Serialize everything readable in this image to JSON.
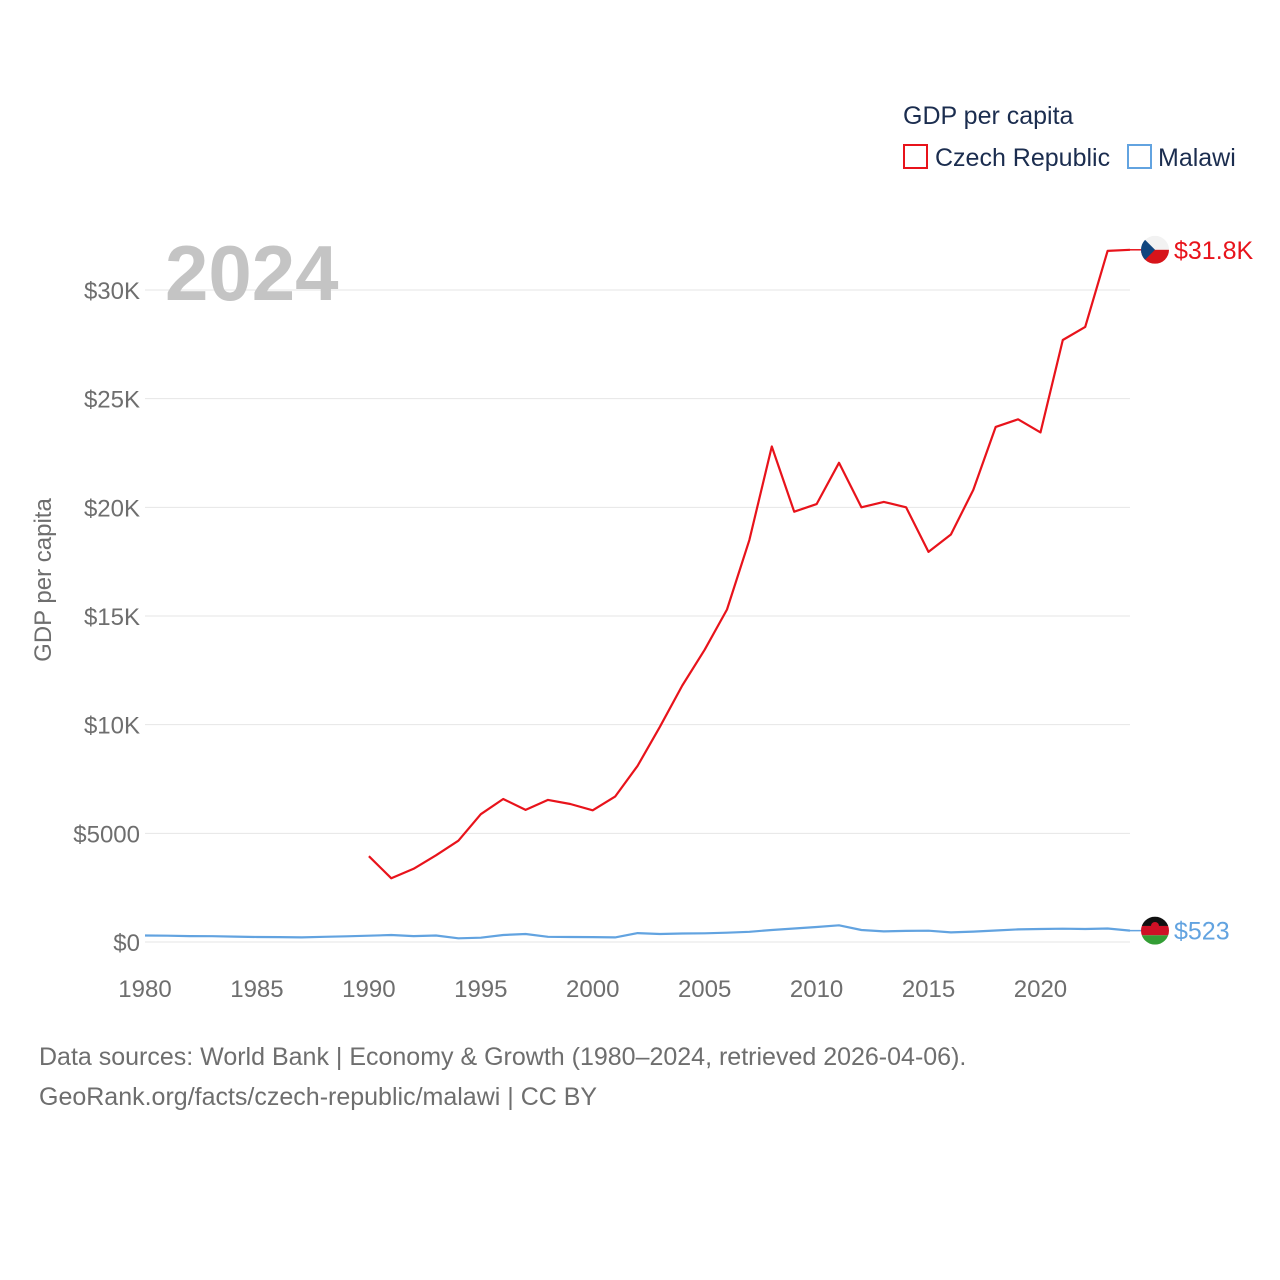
{
  "chart_data": {
    "type": "line",
    "year_label": "2024",
    "ylabel": "GDP per capita",
    "legend_title": "GDP per capita",
    "xlim": [
      1980,
      2024
    ],
    "ylim": [
      0,
      32500
    ],
    "x_ticks": [
      1980,
      1985,
      1990,
      1995,
      2000,
      2005,
      2010,
      2015,
      2020
    ],
    "y_ticks": [
      {
        "value": 0,
        "label": "$0"
      },
      {
        "value": 5000,
        "label": "$5000"
      },
      {
        "value": 10000,
        "label": "$10K"
      },
      {
        "value": 15000,
        "label": "$15K"
      },
      {
        "value": 20000,
        "label": "$20K"
      },
      {
        "value": 25000,
        "label": "$25K"
      },
      {
        "value": 30000,
        "label": "$30K"
      }
    ],
    "series": [
      {
        "name": "Czech Republic",
        "color": "#e8131b",
        "end_label": "$31.8K",
        "flag": "czech-republic-flag",
        "x": [
          1990,
          1991,
          1992,
          1993,
          1994,
          1995,
          1996,
          1997,
          1998,
          1999,
          2000,
          2001,
          2002,
          2003,
          2004,
          2005,
          2006,
          2007,
          2008,
          2009,
          2010,
          2011,
          2012,
          2013,
          2014,
          2015,
          2016,
          2017,
          2018,
          2019,
          2020,
          2021,
          2022,
          2023,
          2024
        ],
        "values": [
          3950,
          2930,
          3370,
          3990,
          4660,
          5880,
          6580,
          6080,
          6540,
          6350,
          6060,
          6690,
          8100,
          9900,
          11800,
          13450,
          15300,
          18500,
          22800,
          19800,
          20150,
          22050,
          20000,
          20250,
          20000,
          17950,
          18750,
          20800,
          23700,
          24050,
          23450,
          27700,
          28300,
          31800,
          31850
        ]
      },
      {
        "name": "Malawi",
        "color": "#62a3e0",
        "end_label": "$523",
        "flag": "malawi-flag",
        "x": [
          1980,
          1981,
          1982,
          1983,
          1984,
          1985,
          1986,
          1987,
          1988,
          1989,
          1990,
          1991,
          1992,
          1993,
          1994,
          1995,
          1996,
          1997,
          1998,
          1999,
          2000,
          2001,
          2002,
          2003,
          2004,
          2005,
          2006,
          2007,
          2008,
          2009,
          2010,
          2011,
          2012,
          2013,
          2014,
          2015,
          2016,
          2017,
          2018,
          2019,
          2020,
          2021,
          2022,
          2023,
          2024
        ],
        "values": [
          300,
          290,
          270,
          265,
          250,
          230,
          225,
          210,
          240,
          260,
          290,
          320,
          270,
          300,
          170,
          200,
          320,
          370,
          240,
          230,
          225,
          210,
          410,
          370,
          390,
          400,
          430,
          470,
          550,
          620,
          690,
          770,
          550,
          490,
          510,
          520,
          440,
          480,
          530,
          580,
          600,
          610,
          600,
          620,
          523
        ]
      }
    ]
  },
  "footer": {
    "source": "Data sources: World Bank | Economy & Growth (1980–2024, retrieved 2026-04-06).",
    "credit": "GeoRank.org/facts/czech-republic/malawi | CC BY"
  }
}
